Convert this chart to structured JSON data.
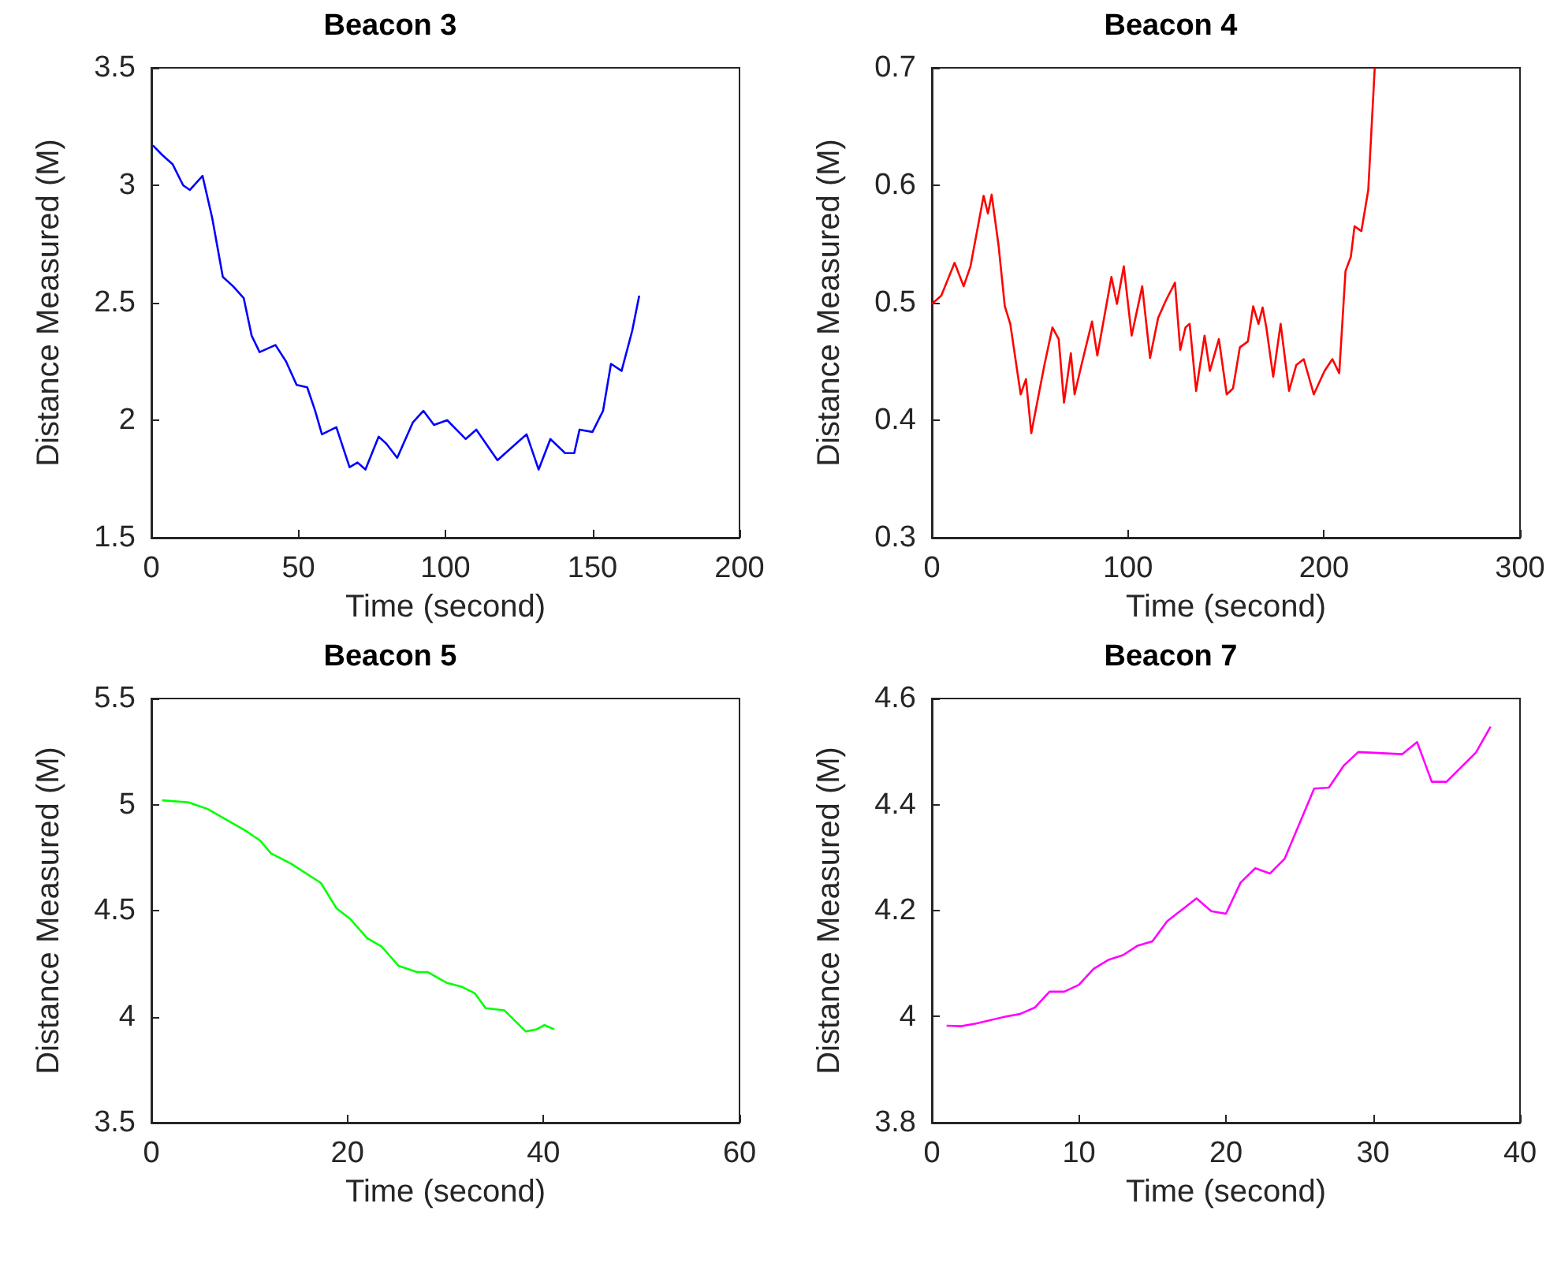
{
  "chart_data": [
    {
      "type": "line",
      "title": "Beacon 3",
      "xlabel": "Time (second)",
      "ylabel": "Distance Measured (M)",
      "xlim": [
        0,
        200
      ],
      "xticks": [
        0,
        50,
        100,
        150,
        200
      ],
      "ylim": [
        1.5,
        3.5
      ],
      "yticks": [
        1.5,
        2,
        2.5,
        3,
        3.5
      ],
      "marker": "none",
      "grid": false,
      "x": [
        0.5,
        3.6,
        7.2,
        10.8,
        13.1,
        17.4,
        20.7,
        24.3,
        27.8,
        31.4,
        34.1,
        36.8,
        42.2,
        45.8,
        49.4,
        53,
        55.7,
        58,
        62.9,
        67.4,
        70.1,
        72.8,
        77.3,
        79.9,
        83.6,
        88.9,
        92.5,
        96.1,
        100.6,
        106.9,
        110.5,
        117.7,
        124.9,
        127.6,
        131.7,
        135.7,
        140.7,
        143.8,
        145.6,
        150,
        153.6,
        156.3,
        159.9,
        163.5,
        165.9
      ],
      "series": [
        {
          "color": "#0000ff",
          "values": [
            3.17,
            3.13,
            3.09,
            3.0,
            2.98,
            3.04,
            2.86,
            2.61,
            2.57,
            2.52,
            2.36,
            2.29,
            2.32,
            2.25,
            2.15,
            2.14,
            2.04,
            1.94,
            1.97,
            1.8,
            1.82,
            1.79,
            1.93,
            1.9,
            1.84,
            1.99,
            2.04,
            1.98,
            2.0,
            1.92,
            1.96,
            1.83,
            1.91,
            1.94,
            1.79,
            1.92,
            1.86,
            1.86,
            1.96,
            1.95,
            2.04,
            2.24,
            2.21,
            2.38,
            2.53
          ]
        }
      ]
    },
    {
      "type": "line",
      "title": "Beacon 4",
      "xlabel": "Time (second)",
      "ylabel": "Distance Measured (M)",
      "xlim": [
        0,
        300
      ],
      "xticks": [
        0,
        100,
        200,
        300
      ],
      "ylim": [
        0.3,
        0.7
      ],
      "yticks": [
        0.3,
        0.4,
        0.5,
        0.6,
        0.7
      ],
      "marker": "none",
      "grid": false,
      "x": [
        0,
        4.8,
        11.6,
        16.2,
        19.7,
        26.4,
        28.6,
        30.5,
        34,
        37.2,
        40,
        45.3,
        48,
        50.7,
        57.4,
        61.5,
        64.7,
        67.4,
        70.9,
        72.8,
        76.3,
        81.7,
        84.4,
        91.6,
        94.4,
        97.9,
        101.9,
        107.3,
        111.3,
        115.4,
        119.4,
        124,
        126.7,
        129.4,
        131.5,
        134.8,
        139.1,
        141.8,
        146.4,
        150.4,
        153.6,
        157.1,
        161.2,
        163.9,
        166.6,
        168.7,
        170.6,
        174.1,
        177.9,
        182.2,
        185.9,
        189.7,
        194.8,
        200.3,
        204.3,
        207.8,
        211,
        213.7,
        215.6,
        219.1,
        222.6,
        225.9
      ],
      "series": [
        {
          "color": "#ff0000",
          "values": [
            0.499,
            0.506,
            0.534,
            0.514,
            0.531,
            0.591,
            0.576,
            0.592,
            0.549,
            0.497,
            0.482,
            0.422,
            0.435,
            0.389,
            0.447,
            0.479,
            0.469,
            0.415,
            0.457,
            0.422,
            0.447,
            0.484,
            0.455,
            0.522,
            0.499,
            0.531,
            0.472,
            0.514,
            0.453,
            0.487,
            0.502,
            0.517,
            0.46,
            0.479,
            0.482,
            0.425,
            0.472,
            0.442,
            0.469,
            0.422,
            0.427,
            0.462,
            0.467,
            0.497,
            0.482,
            0.496,
            0.479,
            0.437,
            0.482,
            0.425,
            0.447,
            0.452,
            0.422,
            0.442,
            0.452,
            0.44,
            0.527,
            0.539,
            0.565,
            0.561,
            0.596,
            0.7
          ]
        }
      ]
    },
    {
      "type": "line",
      "title": "Beacon 5",
      "xlabel": "Time (second)",
      "ylabel": "Distance Measured (M)",
      "xlim": [
        0,
        60
      ],
      "xticks": [
        0,
        20,
        40,
        60
      ],
      "ylim": [
        3.5,
        5.5
      ],
      "yticks": [
        3.5,
        4,
        4.5,
        5,
        5.5
      ],
      "marker": "none",
      "grid": false,
      "x": [
        1.1,
        3.8,
        5.7,
        7.6,
        9.5,
        11.1,
        12.2,
        14.3,
        17.3,
        18.9,
        20.3,
        22,
        23.5,
        25.2,
        27.1,
        28.2,
        30.1,
        31.7,
        33,
        34.1,
        36,
        38.2,
        39.3,
        40.1,
        41.1
      ],
      "series": [
        {
          "color": "#00ff00",
          "values": [
            5.02,
            5.01,
            4.98,
            4.93,
            4.88,
            4.83,
            4.77,
            4.72,
            4.63,
            4.51,
            4.46,
            4.37,
            4.33,
            4.24,
            4.21,
            4.21,
            4.16,
            4.14,
            4.11,
            4.04,
            4.03,
            3.93,
            3.94,
            3.96,
            3.94
          ]
        }
      ]
    },
    {
      "type": "line",
      "title": "Beacon 7",
      "xlabel": "Time (second)",
      "ylabel": "Distance Measured (M)",
      "xlim": [
        0,
        40
      ],
      "xticks": [
        0,
        10,
        20,
        30,
        40
      ],
      "ylim": [
        3.8,
        4.6
      ],
      "yticks": [
        3.8,
        4,
        4.2,
        4.4,
        4.6
      ],
      "marker": "none",
      "grid": false,
      "x": [
        1,
        2,
        3,
        5,
        6,
        7,
        8,
        9,
        10,
        11,
        12,
        13,
        14,
        15,
        16,
        18,
        19,
        20,
        21,
        22,
        23,
        24,
        26,
        27,
        28,
        29,
        32,
        33,
        34,
        35,
        37,
        38
      ],
      "series": [
        {
          "color": "#ff00ff",
          "values": [
            3.983,
            3.982,
            3.987,
            4.0,
            4.005,
            4.017,
            4.047,
            4.047,
            4.06,
            4.09,
            4.107,
            4.116,
            4.134,
            4.142,
            4.18,
            4.223,
            4.199,
            4.194,
            4.253,
            4.28,
            4.27,
            4.298,
            4.43,
            4.432,
            4.473,
            4.499,
            4.495,
            4.518,
            4.443,
            4.443,
            4.498,
            4.547
          ]
        }
      ]
    }
  ]
}
